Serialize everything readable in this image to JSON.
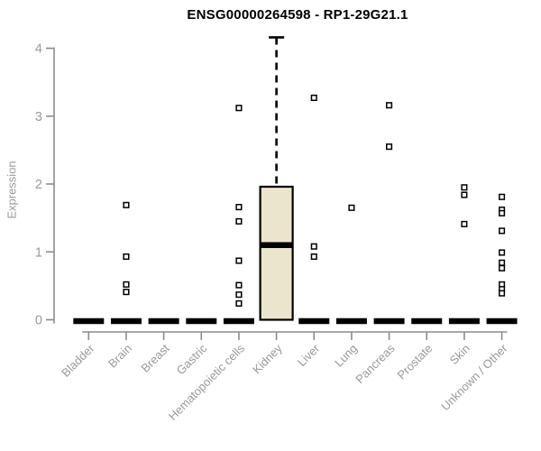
{
  "chart_data": {
    "type": "boxplot",
    "title": "ENSG00000264598 - RP1-29G21.1",
    "ylabel": "Expression",
    "xlabel": "",
    "ylim": [
      0,
      4
    ],
    "yticks": [
      0,
      1,
      2,
      3,
      4
    ],
    "grid": false,
    "legend": "none",
    "categories": [
      "Bladder",
      "Brain",
      "Breast",
      "Gastric",
      "Hematopoietic cells",
      "Kidney",
      "Liver",
      "Lung",
      "Pancreas",
      "Prostate",
      "Skin",
      "Unknown / Other"
    ],
    "boxes": [
      {
        "category": "Bladder",
        "whisker_low": 0,
        "q1": 0,
        "median": 0,
        "q3": 0,
        "whisker_high": 0,
        "outliers": []
      },
      {
        "category": "Brain",
        "whisker_low": 0,
        "q1": 0,
        "median": 0,
        "q3": 0,
        "whisker_high": 0,
        "outliers": [
          1.69,
          0.93,
          0.52,
          0.41
        ]
      },
      {
        "category": "Breast",
        "whisker_low": 0,
        "q1": 0,
        "median": 0,
        "q3": 0,
        "whisker_high": 0,
        "outliers": []
      },
      {
        "category": "Gastric",
        "whisker_low": 0,
        "q1": 0,
        "median": 0,
        "q3": 0,
        "whisker_high": 0,
        "outliers": []
      },
      {
        "category": "Hematopoietic cells",
        "whisker_low": 0,
        "q1": 0,
        "median": 0,
        "q3": 0,
        "whisker_high": 0,
        "outliers": [
          3.12,
          1.66,
          1.45,
          0.87,
          0.51,
          0.37,
          0.24
        ]
      },
      {
        "category": "Kidney",
        "whisker_low": 0,
        "q1": 0,
        "median": 1.1,
        "q3": 1.96,
        "whisker_high": 4.16,
        "outliers": []
      },
      {
        "category": "Liver",
        "whisker_low": 0,
        "q1": 0,
        "median": 0,
        "q3": 0,
        "whisker_high": 0,
        "outliers": [
          3.27,
          1.08,
          0.93
        ]
      },
      {
        "category": "Lung",
        "whisker_low": 0,
        "q1": 0,
        "median": 0,
        "q3": 0,
        "whisker_high": 0,
        "outliers": [
          1.65
        ]
      },
      {
        "category": "Pancreas",
        "whisker_low": 0,
        "q1": 0,
        "median": 0,
        "q3": 0,
        "whisker_high": 0,
        "outliers": [
          3.16,
          2.55
        ]
      },
      {
        "category": "Prostate",
        "whisker_low": 0,
        "q1": 0,
        "median": 0,
        "q3": 0,
        "whisker_high": 0,
        "outliers": []
      },
      {
        "category": "Skin",
        "whisker_low": 0,
        "q1": 0,
        "median": 0,
        "q3": 0,
        "whisker_high": 0,
        "outliers": [
          1.95,
          1.84,
          1.41
        ]
      },
      {
        "category": "Unknown / Other",
        "whisker_low": 0,
        "q1": 0,
        "median": 0,
        "q3": 0,
        "whisker_high": 0,
        "outliers": [
          1.81,
          1.62,
          1.57,
          1.31,
          0.99,
          0.84,
          0.76,
          0.52,
          0.45,
          0.39
        ]
      }
    ],
    "colors": {
      "box_fill": "#EBE5CD",
      "box_border": "#000000",
      "median": "#000000",
      "whisker": "#000000",
      "outlier_fill": "#ffffff",
      "outlier_border": "#000000",
      "axis": "#8c8c8c",
      "tick_label": "#999999",
      "title": "#000000"
    }
  }
}
